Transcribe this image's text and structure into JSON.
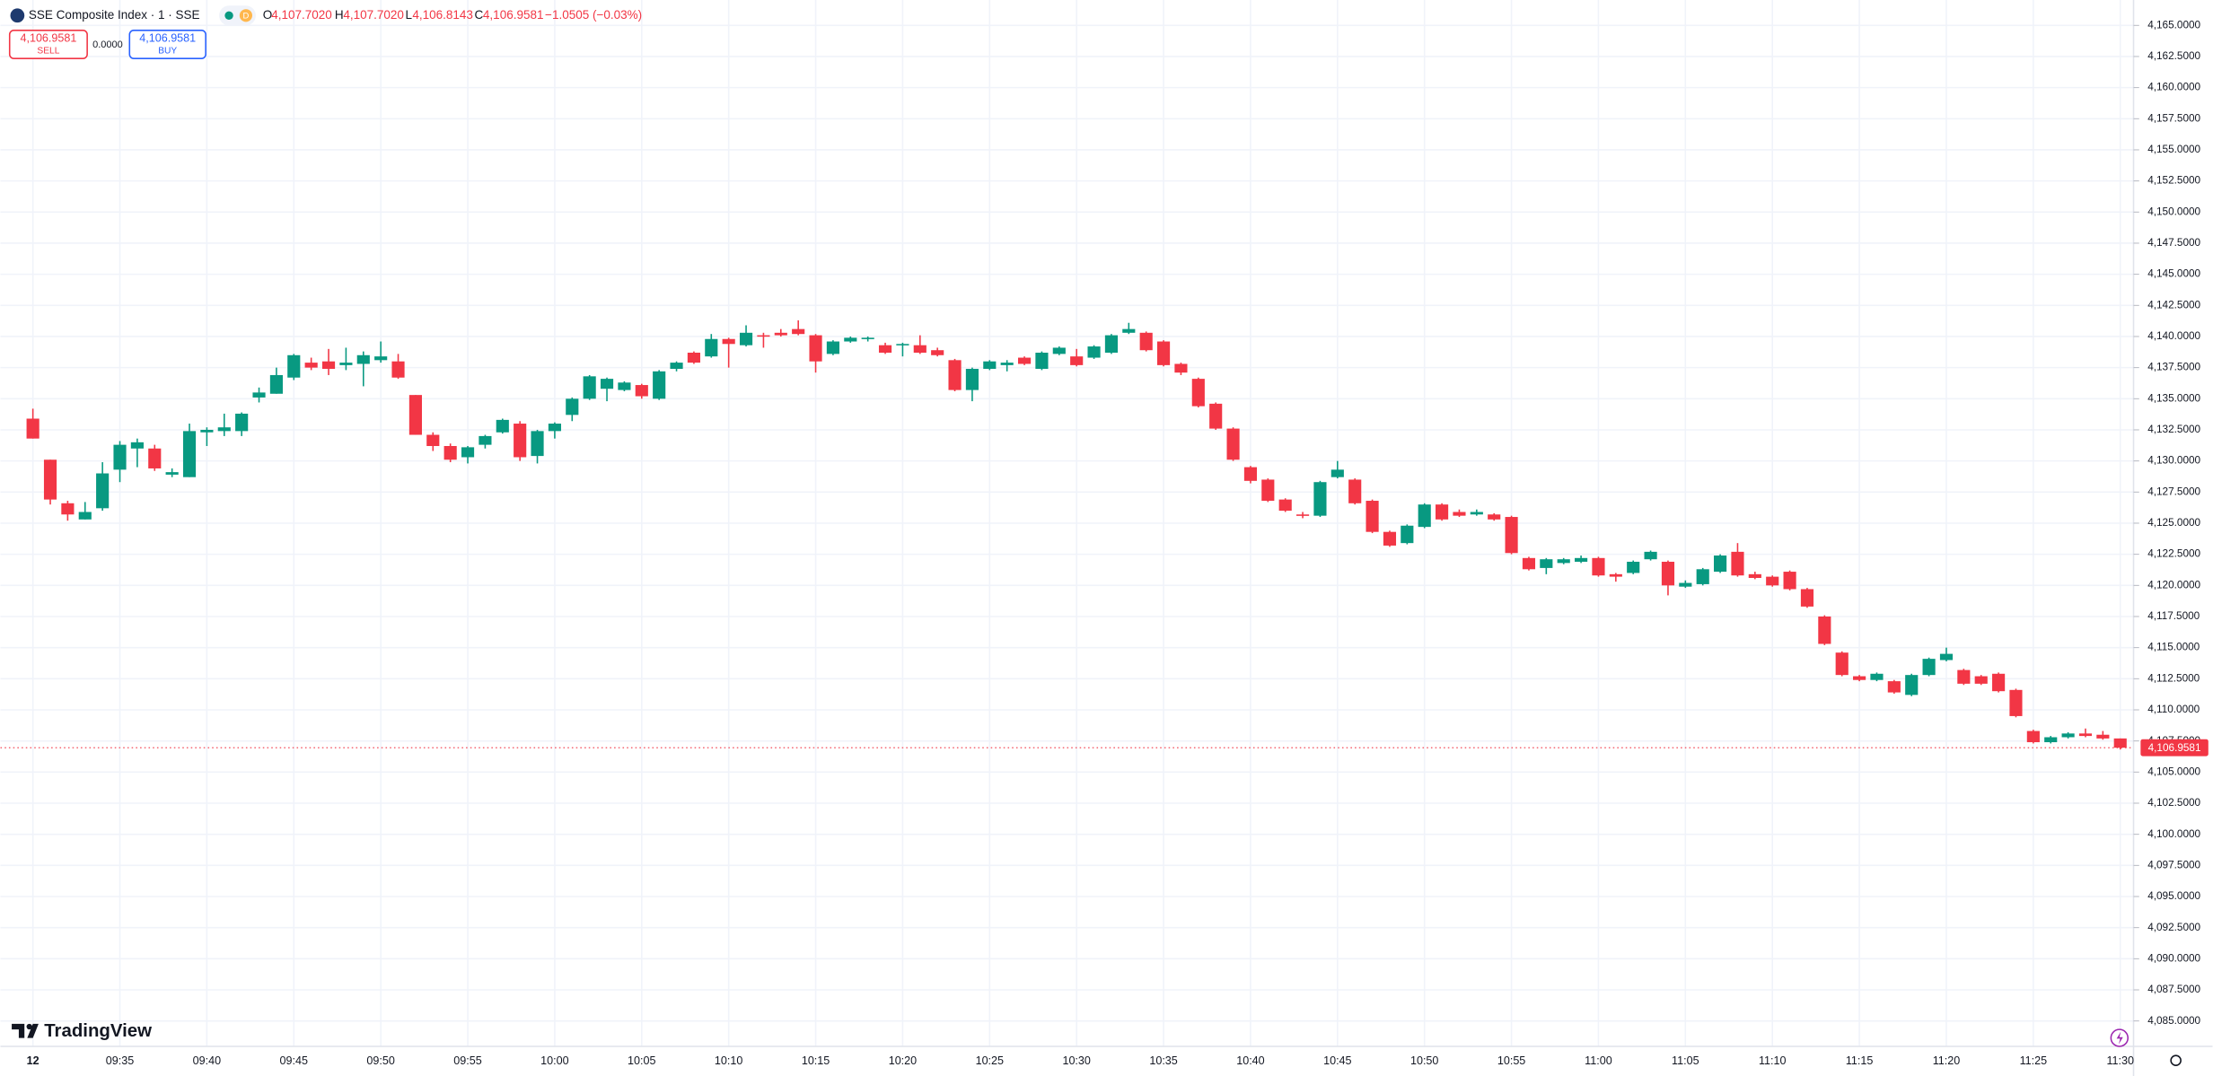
{
  "chart_data": {
    "type": "candlestick",
    "header": {
      "symbol": "SSE Composite Index · 1 · SSE",
      "interval_badge": "D",
      "o_label": "O",
      "o_value": "4,107.7020",
      "h_label": "H",
      "h_value": "4,107.7020",
      "l_label": "L",
      "l_value": "4,106.8143",
      "c_label": "C",
      "c_value": "4,106.9581",
      "change": "−1.0505 (−0.03%)"
    },
    "trade": {
      "sell_price": "4,106.9581",
      "sell": "SELL",
      "spread": "0.0000",
      "buy_price": "4,106.9581",
      "buy": "BUY"
    },
    "brand": "TradingView",
    "up_color": "#089981",
    "down_color": "#f23645",
    "grid": true,
    "categories": [
      "12",
      null,
      null,
      null,
      null,
      "09:35",
      null,
      null,
      null,
      null,
      "09:40",
      null,
      null,
      null,
      null,
      "09:45",
      null,
      null,
      null,
      null,
      "09:50",
      null,
      null,
      null,
      null,
      "09:55",
      null,
      null,
      null,
      null,
      "10:00",
      null,
      null,
      null,
      null,
      "10:05",
      null,
      null,
      null,
      null,
      "10:10",
      null,
      null,
      null,
      null,
      "10:15",
      null,
      null,
      null,
      null,
      "10:20",
      null,
      null,
      null,
      null,
      "10:25",
      null,
      null,
      null,
      null,
      "10:30",
      null,
      null,
      null,
      null,
      "10:35",
      null,
      null,
      null,
      null,
      "10:40",
      null,
      null,
      null,
      null,
      "10:45",
      null,
      null,
      null,
      null,
      "10:50",
      null,
      null,
      null,
      null,
      "10:55",
      null,
      null,
      null,
      null,
      "11:00",
      null,
      null,
      null,
      null,
      "11:05",
      null,
      null,
      null,
      null,
      "11:10",
      null,
      null,
      null,
      null,
      "11:15",
      null,
      null,
      null,
      null,
      "11:20",
      null,
      null,
      null,
      null,
      "11:25",
      null,
      null,
      null,
      null,
      "11:30"
    ],
    "open": [
      4133.4,
      4130.1,
      4126.6,
      4125.3,
      4126.2,
      4129.3,
      4131.0,
      4131.0,
      4128.9,
      4128.7,
      4132.3,
      4132.4,
      4132.4,
      4135.1,
      4135.4,
      4136.7,
      4137.9,
      4138.0,
      4137.7,
      4137.8,
      4138.1,
      4138.0,
      4135.3,
      4132.1,
      4131.2,
      4130.3,
      4131.3,
      4132.3,
      4133.0,
      4130.4,
      4132.4,
      4133.7,
      4135.0,
      4135.8,
      4135.7,
      4136.1,
      4135.0,
      4137.4,
      4138.7,
      4138.4,
      4139.8,
      4139.3,
      4140.1,
      4140.3,
      4140.6,
      4140.1,
      4138.6,
      4139.6,
      4139.8,
      4139.3,
      4139.3,
      4139.3,
      4138.9,
      4138.1,
      4135.7,
      4137.4,
      4137.7,
      4138.3,
      4137.4,
      4138.6,
      4138.4,
      4138.3,
      4138.7,
      4140.3,
      4140.3,
      4139.6,
      4137.8,
      4136.6,
      4134.6,
      4132.6,
      4129.5,
      4128.5,
      4126.9,
      4125.7,
      4125.6,
      4128.7,
      4128.5,
      4126.8,
      4124.3,
      4123.4,
      4124.7,
      4126.5,
      4125.9,
      4125.7,
      4125.7,
      4125.5,
      4122.2,
      4121.4,
      4121.8,
      4121.9,
      4122.2,
      4120.9,
      4121.0,
      4122.1,
      4121.9,
      4119.9,
      4120.1,
      4121.1,
      4122.7,
      4120.9,
      4120.7,
      4121.1,
      4119.7,
      4117.5,
      4114.6,
      4112.7,
      4112.4,
      4112.3,
      4111.2,
      4112.8,
      4114.0,
      4113.2,
      4112.7,
      4112.9,
      4111.6,
      4108.3,
      4107.4,
      4107.8,
      4108.1,
      4108.0,
      4107.702
    ],
    "high": [
      4134.2,
      4130.1,
      4126.8,
      4126.7,
      4129.9,
      4131.6,
      4131.8,
      4131.3,
      4129.4,
      4133.0,
      4132.7,
      4133.8,
      4133.9,
      4135.9,
      4137.5,
      4138.6,
      4138.3,
      4139.0,
      4139.1,
      4138.8,
      4139.6,
      4138.6,
      4135.3,
      4132.3,
      4131.4,
      4131.2,
      4132.1,
      4133.4,
      4133.2,
      4132.5,
      4133.1,
      4135.1,
      4136.9,
      4136.7,
      4136.4,
      4136.2,
      4137.3,
      4138.0,
      4138.8,
      4140.2,
      4139.9,
      4140.9,
      4140.3,
      4140.6,
      4141.3,
      4140.2,
      4139.7,
      4140.0,
      4140.0,
      4139.5,
      4139.5,
      4140.1,
      4139.1,
      4138.2,
      4137.5,
      4138.1,
      4138.1,
      4138.4,
      4138.8,
      4139.2,
      4139.0,
      4139.3,
      4140.2,
      4141.1,
      4140.4,
      4139.7,
      4137.9,
      4136.7,
      4134.7,
      4132.7,
      4129.6,
      4128.6,
      4127.0,
      4125.9,
      4128.4,
      4130.0,
      4128.6,
      4126.9,
      4124.4,
      4124.9,
      4126.6,
      4126.6,
      4126.1,
      4126.1,
      4125.8,
      4125.6,
      4122.3,
      4122.2,
      4122.2,
      4122.4,
      4122.3,
      4121.0,
      4122.0,
      4122.8,
      4122.0,
      4120.4,
      4121.4,
      4122.5,
      4123.4,
      4121.1,
      4120.8,
      4121.2,
      4119.8,
      4117.6,
      4114.7,
      4112.8,
      4113.0,
      4112.4,
      4112.9,
      4114.2,
      4115.0,
      4113.3,
      4112.8,
      4113.0,
      4111.7,
      4108.4,
      4107.9,
      4108.2,
      4108.5,
      4108.3,
      4107.702
    ],
    "low": [
      4131.8,
      4126.5,
      4125.2,
      4125.3,
      4126.0,
      4128.3,
      4129.5,
      4129.2,
      4128.7,
      4128.7,
      4131.2,
      4132.0,
      4132.0,
      4134.7,
      4135.4,
      4136.5,
      4137.3,
      4136.9,
      4137.3,
      4136.0,
      4137.9,
      4136.6,
      4132.1,
      4130.8,
      4129.9,
      4129.8,
      4131.0,
      4132.2,
      4130.0,
      4129.8,
      4131.8,
      4133.2,
      4134.9,
      4134.8,
      4135.6,
      4135.0,
      4134.9,
      4137.2,
      4137.8,
      4138.3,
      4137.5,
      4139.2,
      4139.1,
      4140.0,
      4140.1,
      4137.1,
      4138.5,
      4139.5,
      4139.6,
      4138.6,
      4138.4,
      4138.6,
      4138.4,
      4135.6,
      4134.8,
      4137.3,
      4137.2,
      4137.7,
      4137.3,
      4138.5,
      4137.6,
      4138.2,
      4138.6,
      4140.2,
      4138.8,
      4137.6,
      4136.9,
      4134.3,
      4132.5,
      4130.0,
      4128.2,
      4126.7,
      4125.9,
      4125.4,
      4125.5,
      4128.6,
      4126.5,
      4124.2,
      4123.1,
      4123.3,
      4124.6,
      4125.2,
      4125.5,
      4125.6,
      4125.2,
      4122.5,
      4121.2,
      4120.9,
      4121.7,
      4121.8,
      4120.7,
      4120.3,
      4120.9,
      4122.0,
      4119.2,
      4119.8,
      4120.0,
      4121.0,
      4120.7,
      4120.5,
      4119.9,
      4119.6,
      4118.2,
      4115.2,
      4112.7,
      4112.3,
      4112.3,
      4111.3,
      4111.1,
      4112.7,
      4113.9,
      4112.0,
      4112.0,
      4111.4,
      4109.4,
      4107.3,
      4107.3,
      4107.7,
      4107.8,
      4107.6,
      4106.8143
    ],
    "close": [
      4131.8,
      4126.9,
      4125.7,
      4125.9,
      4129.0,
      4131.3,
      4131.5,
      4129.4,
      4129.1,
      4132.4,
      4132.5,
      4132.7,
      4133.8,
      4135.5,
      4136.9,
      4138.5,
      4137.5,
      4137.4,
      4137.9,
      4138.5,
      4138.4,
      4136.7,
      4132.1,
      4131.2,
      4130.1,
      4131.1,
      4132.0,
      4133.3,
      4130.3,
      4132.4,
      4133.0,
      4135.0,
      4136.8,
      4136.6,
      4136.3,
      4135.2,
      4137.2,
      4137.9,
      4137.9,
      4139.8,
      4139.4,
      4140.3,
      4140.0,
      4140.1,
      4140.2,
      4138.0,
      4139.6,
      4139.9,
      4139.9,
      4138.7,
      4139.4,
      4138.7,
      4138.5,
      4135.7,
      4137.4,
      4138.0,
      4137.9,
      4137.8,
      4138.7,
      4139.1,
      4137.7,
      4139.2,
      4140.1,
      4140.6,
      4138.9,
      4137.7,
      4137.1,
      4134.4,
      4132.6,
      4130.1,
      4128.4,
      4126.8,
      4126.0,
      4125.6,
      4128.3,
      4129.3,
      4126.6,
      4124.3,
      4123.2,
      4124.8,
      4126.5,
      4125.3,
      4125.6,
      4125.9,
      4125.3,
      4122.6,
      4121.3,
      4122.1,
      4122.1,
      4122.2,
      4120.8,
      4120.7,
      4121.9,
      4122.7,
      4120.0,
      4120.2,
      4121.3,
      4122.4,
      4120.8,
      4120.6,
      4120.0,
      4119.7,
      4118.3,
      4115.3,
      4112.8,
      4112.4,
      4112.9,
      4111.4,
      4112.8,
      4114.1,
      4114.5,
      4112.1,
      4112.1,
      4111.5,
      4109.5,
      4107.4,
      4107.8,
      4108.1,
      4107.9,
      4107.7,
      4106.9581
    ],
    "last_price": {
      "value": 4106.9581,
      "label": "4,106.9581"
    },
    "ylim": [
      4082.9575,
      4167.0397
    ],
    "yticks": [
      {
        "value": 4085,
        "label": "4,085.0000"
      },
      {
        "value": 4087.5,
        "label": "4,087.5000"
      },
      {
        "value": 4090,
        "label": "4,090.0000"
      },
      {
        "value": 4092.5,
        "label": "4,092.5000"
      },
      {
        "value": 4095,
        "label": "4,095.0000"
      },
      {
        "value": 4097.5,
        "label": "4,097.5000"
      },
      {
        "value": 4100,
        "label": "4,100.0000"
      },
      {
        "value": 4102.5,
        "label": "4,102.5000"
      },
      {
        "value": 4105,
        "label": "4,105.0000"
      },
      {
        "value": 4107.5,
        "label": "4,107.5000"
      },
      {
        "value": 4110,
        "label": "4,110.0000"
      },
      {
        "value": 4112.5,
        "label": "4,112.5000"
      },
      {
        "value": 4115,
        "label": "4,115.0000"
      },
      {
        "value": 4117.5,
        "label": "4,117.5000"
      },
      {
        "value": 4120,
        "label": "4,120.0000"
      },
      {
        "value": 4122.5,
        "label": "4,122.5000"
      },
      {
        "value": 4125,
        "label": "4,125.0000"
      },
      {
        "value": 4127.5,
        "label": "4,127.5000"
      },
      {
        "value": 4130,
        "label": "4,130.0000"
      },
      {
        "value": 4132.5,
        "label": "4,132.5000"
      },
      {
        "value": 4135,
        "label": "4,135.0000"
      },
      {
        "value": 4137.5,
        "label": "4,137.5000"
      },
      {
        "value": 4140,
        "label": "4,140.0000"
      },
      {
        "value": 4142.5,
        "label": "4,142.5000"
      },
      {
        "value": 4145,
        "label": "4,145.0000"
      },
      {
        "value": 4147.5,
        "label": "4,147.5000"
      },
      {
        "value": 4150,
        "label": "4,150.0000"
      },
      {
        "value": 4152.5,
        "label": "4,152.5000"
      },
      {
        "value": 4155,
        "label": "4,155.0000"
      },
      {
        "value": 4157.5,
        "label": "4,157.5000"
      },
      {
        "value": 4160,
        "label": "4,160.0000"
      },
      {
        "value": 4162.5,
        "label": "4,162.5000"
      },
      {
        "value": 4165,
        "label": "4,165.0000"
      }
    ]
  }
}
